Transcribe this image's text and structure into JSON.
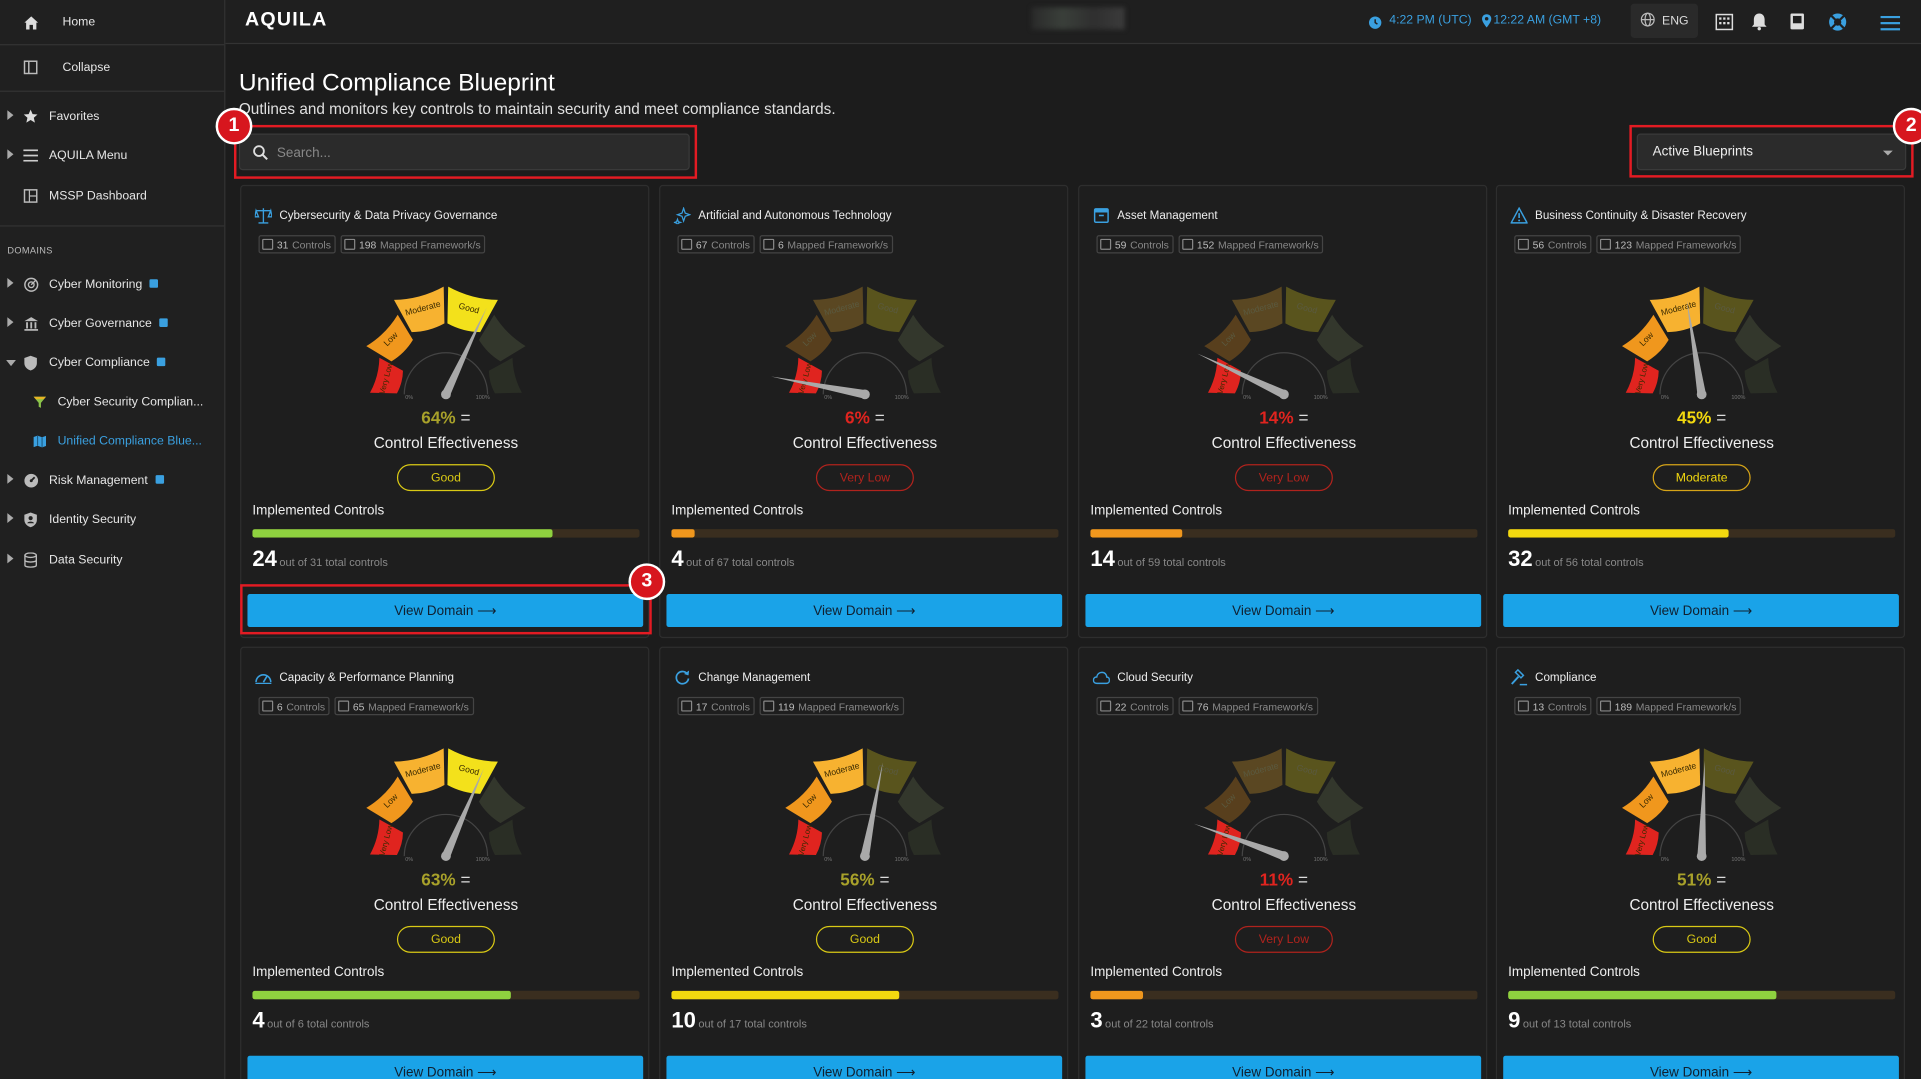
{
  "colors": {
    "accent": "#1aa3e8",
    "red": "#e0241f",
    "orange": "#f0971d",
    "yellow": "#f3d90f",
    "green": "#8fd13f",
    "olive": "#a8a12a"
  },
  "sidebar": {
    "home": "Home",
    "collapse": "Collapse",
    "favorites": "Favorites",
    "aquila_menu": "AQUILA Menu",
    "mssp": "MSSP Dashboard",
    "domains_header": "DOMAINS",
    "items": [
      {
        "label": "Cyber Monitoring",
        "icon": "radar-icon"
      },
      {
        "label": "Cyber Governance",
        "icon": "bank-icon"
      },
      {
        "label": "Cyber Compliance",
        "icon": "shield-icon"
      },
      {
        "label": "Cyber Security Complian...",
        "icon": "funnel-icon"
      },
      {
        "label": "Unified Compliance Blue...",
        "icon": "map-icon"
      },
      {
        "label": "Risk Management",
        "icon": "gauge-icon"
      },
      {
        "label": "Identity Security",
        "icon": "badge-icon"
      },
      {
        "label": "Data Security",
        "icon": "database-icon"
      }
    ]
  },
  "topbar": {
    "logo": "AQUILA",
    "time_utc": "4:22 PM (UTC)",
    "time_local": "12:22 AM (GMT +8)",
    "lang": "ENG"
  },
  "page": {
    "title": "Unified Compliance Blueprint",
    "subtitle": "Outlines and monitors key controls to maintain security and meet compliance standards."
  },
  "search": {
    "placeholder": "Search..."
  },
  "filter": {
    "selected": "Active Blueprints"
  },
  "labels": {
    "controls": "Controls",
    "mapped": "Mapped Framework/s",
    "control_effectiveness": "Control Effectiveness",
    "implemented": "Implemented Controls",
    "view_domain": "View Domain ⟶",
    "eq": "="
  },
  "badges": [
    "1",
    "2",
    "3"
  ],
  "gauge_labels": {
    "very_low": "Very Low",
    "low": "Low",
    "moderate": "Moderate",
    "good": "Good",
    "min": "0%",
    "max": "100%"
  },
  "cards": [
    {
      "title": "Cybersecurity & Data Privacy Governance",
      "icon": "scale-icon",
      "controls": "31",
      "mapped": "198",
      "pct": 64,
      "pct_text": "64%",
      "rating": "Good",
      "implemented": "24",
      "out_of": "out of 31 total controls",
      "fill": 0.774,
      "fill_color": "#8fd13f",
      "pct_color": "#a8a12a"
    },
    {
      "title": "Artificial and Autonomous Technology",
      "icon": "sparkle-icon",
      "controls": "67",
      "mapped": "6",
      "pct": 6,
      "pct_text": "6%",
      "rating": "Very Low",
      "implemented": "4",
      "out_of": "out of 67 total controls",
      "fill": 0.06,
      "fill_color": "#f0971d",
      "pct_color": "#e0241f"
    },
    {
      "title": "Asset Management",
      "icon": "box-icon",
      "controls": "59",
      "mapped": "152",
      "pct": 14,
      "pct_text": "14%",
      "rating": "Very Low",
      "implemented": "14",
      "out_of": "out of 59 total controls",
      "fill": 0.237,
      "fill_color": "#f0971d",
      "pct_color": "#e0241f"
    },
    {
      "title": "Business Continuity & Disaster Recovery",
      "icon": "warning-icon",
      "controls": "56",
      "mapped": "123",
      "pct": 45,
      "pct_text": "45%",
      "rating": "Moderate",
      "implemented": "32",
      "out_of": "out of 56 total controls",
      "fill": 0.571,
      "fill_color": "#f3d90f",
      "pct_color": "#f3d90f"
    },
    {
      "title": "Capacity & Performance Planning",
      "icon": "speedometer-icon",
      "controls": "6",
      "mapped": "65",
      "pct": 63,
      "pct_text": "63%",
      "rating": "Good",
      "implemented": "4",
      "out_of": "out of 6 total controls",
      "fill": 0.667,
      "fill_color": "#8fd13f",
      "pct_color": "#a8a12a"
    },
    {
      "title": "Change Management",
      "icon": "refresh-icon",
      "controls": "17",
      "mapped": "119",
      "pct": 56,
      "pct_text": "56%",
      "rating": "Good",
      "implemented": "10",
      "out_of": "out of 17 total controls",
      "fill": 0.588,
      "fill_color": "#f3d90f",
      "pct_color": "#a8a12a"
    },
    {
      "title": "Cloud Security",
      "icon": "cloud-icon",
      "controls": "22",
      "mapped": "76",
      "pct": 11,
      "pct_text": "11%",
      "rating": "Very Low",
      "implemented": "3",
      "out_of": "out of 22 total controls",
      "fill": 0.136,
      "fill_color": "#f0971d",
      "pct_color": "#e0241f"
    },
    {
      "title": "Compliance",
      "icon": "gavel-icon",
      "controls": "13",
      "mapped": "189",
      "pct": 51,
      "pct_text": "51%",
      "rating": "Good",
      "implemented": "9",
      "out_of": "out of 13 total controls",
      "fill": 0.692,
      "fill_color": "#8fd13f",
      "pct_color": "#a8a12a"
    }
  ]
}
